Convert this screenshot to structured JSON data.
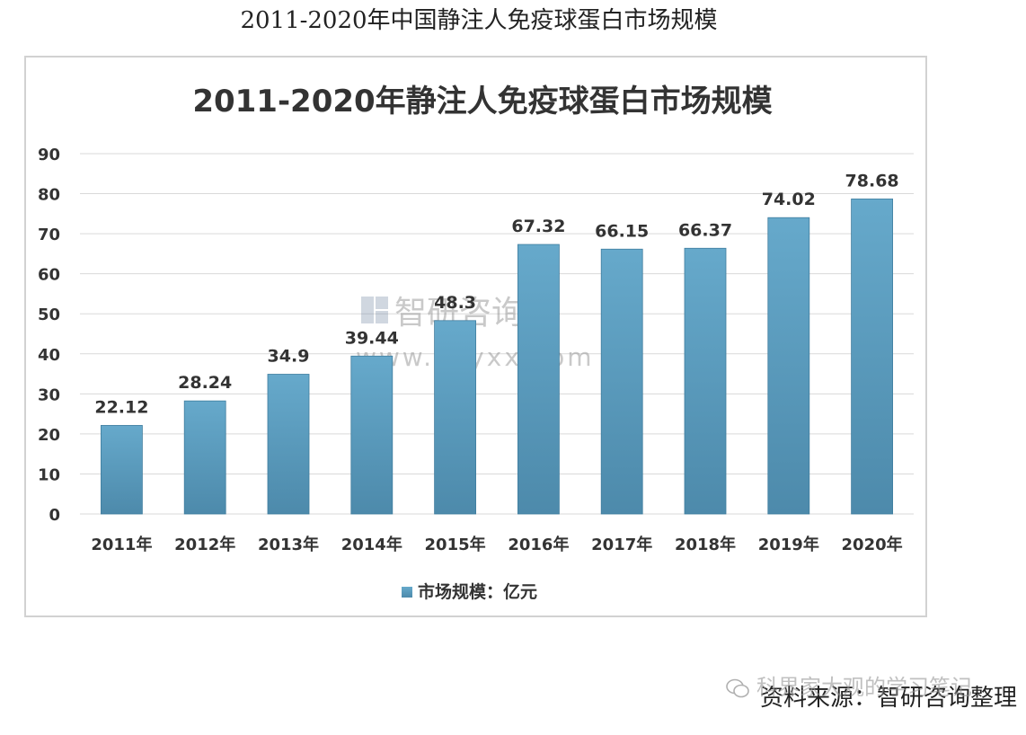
{
  "page_heading": "2011-2020年中国静注人免疫球蛋白市场规模",
  "source_note": "资料来源：智研咨询整理",
  "wechat_overlay": "科界家大观的学习笔记",
  "watermark": {
    "brand": "智研咨询",
    "url": "www.chyxx.com"
  },
  "colors": {
    "bar": "#5b9ec0",
    "bar_dark": "#4a88aa",
    "grid": "#d9d9d9",
    "text": "#333333"
  },
  "chart_data": {
    "type": "bar",
    "title": "2011-2020年静注人免疫球蛋白市场规模",
    "categories": [
      "2011年",
      "2012年",
      "2013年",
      "2014年",
      "2015年",
      "2016年",
      "2017年",
      "2018年",
      "2019年",
      "2020年"
    ],
    "series": [
      {
        "name": "市场规模：亿元",
        "values": [
          22.12,
          28.24,
          34.9,
          39.44,
          48.3,
          67.32,
          66.15,
          66.37,
          74.02,
          78.68
        ],
        "labels": [
          "22.12",
          "28.24",
          "34.9",
          "39.44",
          "48.3",
          "67.32",
          "66.15",
          "66.37",
          "74.02",
          "78.68"
        ]
      }
    ],
    "ylim": [
      0,
      90
    ],
    "yticks": [
      "0",
      "10",
      "20",
      "30",
      "40",
      "50",
      "60",
      "70",
      "80",
      "90"
    ],
    "grid": true,
    "legend_position": "bottom"
  }
}
